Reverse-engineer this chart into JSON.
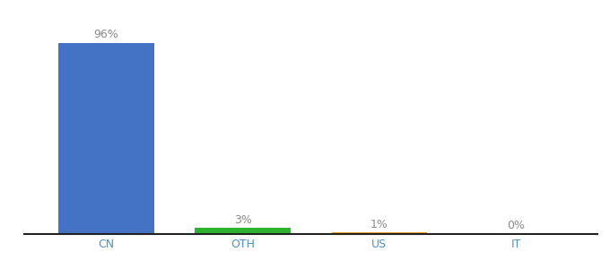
{
  "categories": [
    "CN",
    "OTH",
    "US",
    "IT"
  ],
  "values": [
    96,
    3,
    1,
    0.2
  ],
  "labels": [
    "96%",
    "3%",
    "1%",
    "0%"
  ],
  "bar_colors": [
    "#4472c4",
    "#2db32d",
    "#f0a020",
    "#f0a020"
  ],
  "ylim": [
    0,
    108
  ],
  "background_color": "#ffffff",
  "bar_width": 0.7,
  "label_fontsize": 9,
  "tick_fontsize": 9,
  "tick_color": "#4d8fcc",
  "label_color": "#888888"
}
